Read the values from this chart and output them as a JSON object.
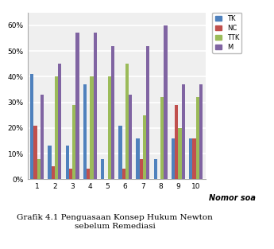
{
  "title": "Grafik 4.1 Penguasaan Konsep Hukum Newton\nsebelum Remediasi",
  "xlabel": "Nomor soa",
  "categories": [
    1,
    2,
    3,
    4,
    5,
    6,
    7,
    8,
    9,
    10
  ],
  "series": {
    "TK": [
      41,
      13,
      13,
      37,
      8,
      21,
      16,
      8,
      16,
      16
    ],
    "NC": [
      21,
      5,
      4,
      4,
      0,
      4,
      8,
      0,
      29,
      16
    ],
    "TTK": [
      8,
      40,
      29,
      40,
      40,
      45,
      25,
      32,
      20,
      32
    ],
    "M": [
      33,
      45,
      57,
      57,
      52,
      33,
      52,
      60,
      37,
      37
    ]
  },
  "colors": {
    "TK": "#4F81BD",
    "NC": "#C0504D",
    "TTK": "#9BBB59",
    "M": "#8064A2"
  },
  "ylim": [
    0,
    65
  ],
  "yticks": [
    0,
    10,
    20,
    30,
    40,
    50,
    60
  ],
  "ytick_labels": [
    "0%",
    "10%",
    "20%",
    "30%",
    "40%",
    "50%",
    "60%"
  ],
  "legend_order": [
    "TK",
    "NC",
    "TTK",
    "M"
  ],
  "plot_bg_color": "#EFEFEF",
  "grid_color": "#FFFFFF",
  "bar_width": 0.19,
  "figsize": [
    3.45,
    3.13
  ],
  "dpi": 100
}
